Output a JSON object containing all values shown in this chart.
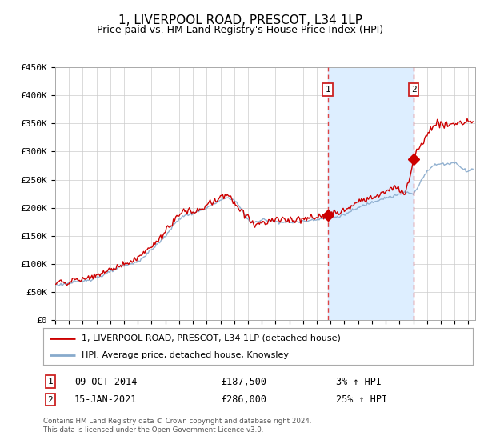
{
  "title": "1, LIVERPOOL ROAD, PRESCOT, L34 1LP",
  "subtitle": "Price paid vs. HM Land Registry's House Price Index (HPI)",
  "ylim": [
    0,
    450000
  ],
  "yticks": [
    0,
    50000,
    100000,
    150000,
    200000,
    250000,
    300000,
    350000,
    400000,
    450000
  ],
  "ytick_labels": [
    "£0",
    "£50K",
    "£100K",
    "£150K",
    "£200K",
    "£250K",
    "£300K",
    "£350K",
    "£400K",
    "£450K"
  ],
  "xlim_start": 1995.0,
  "xlim_end": 2025.5,
  "background_color": "#ffffff",
  "plot_bg_color": "#ffffff",
  "shade_color": "#ddeeff",
  "grid_color": "#cccccc",
  "transaction1_x": 2014.79,
  "transaction1_y": 187500,
  "transaction2_x": 2021.04,
  "transaction2_y": 286000,
  "legend_line1": "1, LIVERPOOL ROAD, PRESCOT, L34 1LP (detached house)",
  "legend_line2": "HPI: Average price, detached house, Knowsley",
  "footer_line1": "Contains HM Land Registry data © Crown copyright and database right 2024.",
  "footer_line2": "This data is licensed under the Open Government Licence v3.0.",
  "annotation1_date": "09-OCT-2014",
  "annotation1_price": "£187,500",
  "annotation1_hpi": "3% ↑ HPI",
  "annotation2_date": "15-JAN-2021",
  "annotation2_price": "£286,000",
  "annotation2_hpi": "25% ↑ HPI",
  "line_color_red": "#cc0000",
  "line_color_blue": "#88aacc",
  "marker_color_red": "#cc0000",
  "vline_color": "#dd4444",
  "box_edge_color": "#cc2222"
}
